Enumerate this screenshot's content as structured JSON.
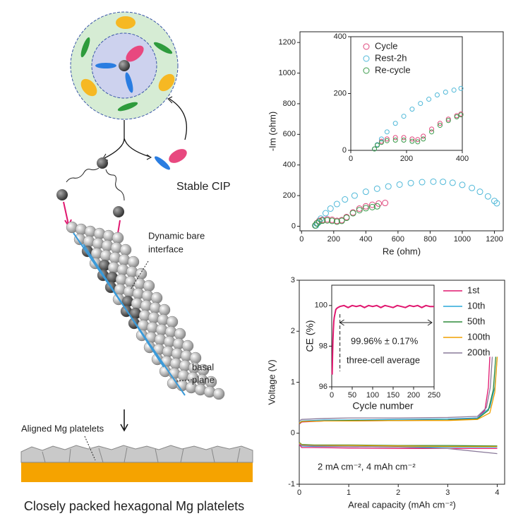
{
  "schematic": {
    "stable_cip": "Stable CIP",
    "dynamic_interface": [
      "Dynamic bare",
      "interface"
    ],
    "basal_plane": [
      "basal",
      "plane"
    ],
    "aligned": "Aligned Mg platelets",
    "caption": "Closely packed hexagonal Mg platelets"
  },
  "chart_data": [
    {
      "type": "scatter",
      "xlabel": "Re (ohm)",
      "ylabel": "-Im (ohm)",
      "xlim": [
        -10,
        1255
      ],
      "ylim": [
        -30,
        1270
      ],
      "xticks": [
        0,
        200,
        400,
        600,
        800,
        1000,
        1200
      ],
      "yticks": [
        0,
        200,
        400,
        600,
        800,
        1000,
        1200
      ],
      "series": [
        {
          "color": "#e0457b",
          "x": [
            85,
            95,
            110,
            130,
            160,
            190,
            220,
            250,
            280,
            320,
            360,
            400,
            440,
            480,
            520
          ],
          "values": [
            5,
            20,
            35,
            42,
            45,
            42,
            35,
            40,
            60,
            90,
            115,
            130,
            140,
            148,
            152
          ]
        },
        {
          "color": "#4fb8d8",
          "x": [
            90,
            100,
            120,
            150,
            180,
            220,
            270,
            330,
            400,
            470,
            540,
            610,
            680,
            750,
            820,
            880,
            940,
            1000,
            1060,
            1110,
            1160,
            1200,
            1215
          ],
          "values": [
            5,
            20,
            50,
            85,
            115,
            145,
            175,
            200,
            225,
            245,
            260,
            272,
            282,
            288,
            291,
            290,
            284,
            270,
            250,
            225,
            195,
            165,
            150
          ]
        },
        {
          "color": "#3a9a4a",
          "x": [
            85,
            95,
            110,
            130,
            160,
            190,
            220,
            250,
            280,
            320,
            360,
            400,
            440,
            470
          ],
          "values": [
            5,
            18,
            30,
            36,
            38,
            35,
            30,
            35,
            55,
            85,
            105,
            118,
            125,
            130
          ]
        }
      ]
    },
    {
      "type": "scatter",
      "xlim": [
        0,
        400
      ],
      "ylim": [
        0,
        400
      ],
      "xticks": [
        0,
        200,
        400
      ],
      "yticks": [
        0,
        200,
        400
      ],
      "legend": "upper left",
      "series": [
        {
          "name": "Cycle",
          "color": "#e0457b",
          "x": [
            85,
            95,
            110,
            130,
            160,
            190,
            220,
            240,
            260,
            290,
            320,
            350,
            380,
            395
          ],
          "values": [
            5,
            20,
            32,
            40,
            45,
            45,
            40,
            38,
            50,
            75,
            95,
            110,
            122,
            128
          ]
        },
        {
          "name": "Rest-2h",
          "color": "#4fb8d8",
          "x": [
            85,
            95,
            110,
            130,
            160,
            190,
            220,
            250,
            280,
            310,
            340,
            370,
            395
          ],
          "values": [
            5,
            20,
            40,
            65,
            95,
            120,
            145,
            165,
            180,
            195,
            205,
            212,
            218
          ]
        },
        {
          "name": "Re-cycle",
          "color": "#3a9a4a",
          "x": [
            85,
            95,
            110,
            130,
            160,
            190,
            220,
            240,
            260,
            290,
            320,
            350,
            380,
            395
          ],
          "values": [
            5,
            18,
            28,
            34,
            36,
            36,
            32,
            30,
            40,
            65,
            88,
            105,
            118,
            125
          ]
        }
      ]
    },
    {
      "type": "line",
      "xlabel": "Areal capacity (mAh cm⁻²)",
      "ylabel": "Voltage (V)",
      "xlim": [
        0,
        4.15
      ],
      "ylim": [
        -1,
        3
      ],
      "xticks": [
        0,
        1,
        2,
        3,
        4
      ],
      "yticks": [
        -1,
        0,
        1,
        2,
        3
      ],
      "legend": "right",
      "annotation": "2 mA cm⁻², 4 mAh cm⁻²",
      "series": [
        {
          "name": "1st",
          "color": "#e0176f",
          "x": [
            0,
            0.05,
            0.3,
            1,
            2,
            3,
            4,
            4,
            0,
            0.05,
            0.5,
            1,
            2,
            3,
            3.6,
            3.75,
            3.82,
            3.85
          ],
          "values": [
            -0.22,
            -0.28,
            -0.28,
            -0.29,
            -0.3,
            -0.3,
            -0.3,
            null,
            0.18,
            0.22,
            0.24,
            0.24,
            0.25,
            0.26,
            0.3,
            0.45,
            0.9,
            1.5
          ]
        },
        {
          "name": "10th",
          "color": "#29a8d8",
          "x": [
            0,
            0.05,
            0.3,
            1,
            2,
            3,
            4,
            4,
            0,
            0.05,
            0.5,
            1,
            2,
            3,
            3.6,
            3.85,
            3.95,
            4.0
          ],
          "values": [
            -0.2,
            -0.25,
            -0.26,
            -0.26,
            -0.27,
            -0.27,
            -0.27,
            null,
            0.2,
            0.24,
            0.26,
            0.26,
            0.27,
            0.28,
            0.3,
            0.5,
            0.9,
            1.5
          ]
        },
        {
          "name": "50th",
          "color": "#2e8b3a",
          "x": [
            0,
            0.05,
            0.3,
            1,
            2,
            3,
            4,
            4,
            0,
            0.05,
            0.5,
            1,
            2,
            3,
            3.6,
            3.82,
            3.92,
            3.97
          ],
          "values": [
            -0.18,
            -0.22,
            -0.23,
            -0.23,
            -0.24,
            -0.24,
            -0.25,
            null,
            0.19,
            0.23,
            0.24,
            0.25,
            0.25,
            0.26,
            0.28,
            0.45,
            0.85,
            1.5
          ]
        },
        {
          "name": "100th",
          "color": "#f0a000",
          "x": [
            0,
            0.05,
            0.3,
            1,
            2,
            3,
            4,
            4,
            0,
            0.05,
            0.5,
            1,
            2,
            3,
            3.6,
            3.85,
            3.95,
            4.0
          ],
          "values": [
            -0.19,
            -0.23,
            -0.24,
            -0.24,
            -0.25,
            -0.26,
            -0.26,
            null,
            0.2,
            0.23,
            0.24,
            0.24,
            0.25,
            0.25,
            0.27,
            0.4,
            0.8,
            1.5
          ]
        },
        {
          "name": "200th",
          "color": "#8a7a9a",
          "x": [
            0,
            0.05,
            0.3,
            1,
            2,
            3,
            4,
            4,
            0,
            0.05,
            0.5,
            1,
            2,
            3,
            3.6,
            3.78,
            3.86,
            3.9
          ],
          "values": [
            -0.21,
            -0.24,
            -0.25,
            -0.26,
            -0.27,
            -0.3,
            -0.4,
            null,
            0.24,
            0.27,
            0.29,
            0.3,
            0.3,
            0.31,
            0.33,
            0.5,
            0.9,
            1.5
          ]
        }
      ]
    },
    {
      "type": "line",
      "xlabel": "Cycle number",
      "ylabel": "CE (%)",
      "xlim": [
        0,
        250
      ],
      "ylim": [
        96,
        101
      ],
      "xticks": [
        0,
        50,
        100,
        150,
        200,
        250
      ],
      "yticks": [
        96,
        98,
        100
      ],
      "annotations": [
        "99.96% ± 0.17%",
        "three-cell average"
      ],
      "series": [
        {
          "color": "#e0176f",
          "x": [
            1,
            2,
            3,
            4,
            5,
            6,
            8,
            10,
            12,
            15,
            20,
            30,
            40,
            50,
            60,
            70,
            80,
            90,
            100,
            110,
            120,
            130,
            140,
            150,
            160,
            170,
            180,
            190,
            200,
            210,
            220,
            230,
            240,
            250
          ],
          "values": [
            96.6,
            97.6,
            98.3,
            98.8,
            99.2,
            99.4,
            99.6,
            99.8,
            99.85,
            99.9,
            99.95,
            100.0,
            99.9,
            100.0,
            99.95,
            100.0,
            99.9,
            100.0,
            99.95,
            100.0,
            99.9,
            100.0,
            99.95,
            99.9,
            100.0,
            99.95,
            99.9,
            100.0,
            99.95,
            100.0,
            99.9,
            100.0,
            99.95,
            99.95
          ]
        }
      ]
    }
  ]
}
